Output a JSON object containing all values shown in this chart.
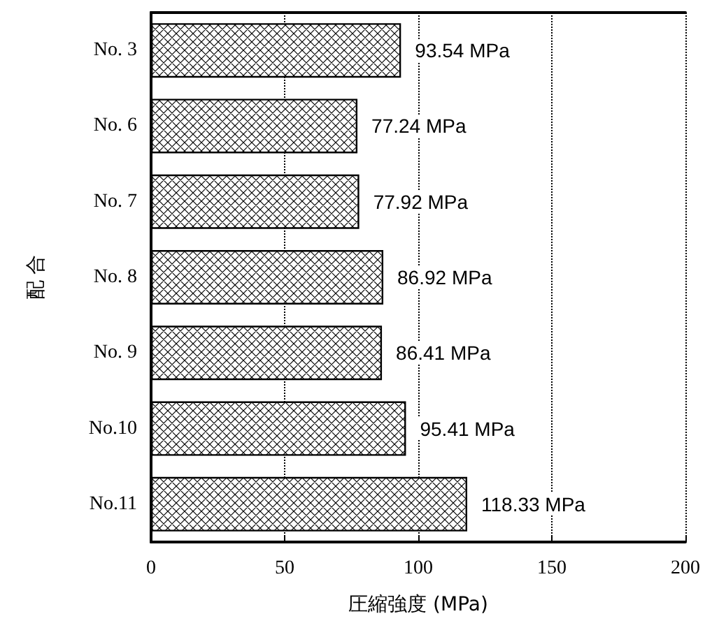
{
  "chart_data": {
    "type": "bar",
    "orientation": "horizontal",
    "categories": [
      "No. 3",
      "No. 6",
      "No. 7",
      "No. 8",
      "No. 9",
      "No.10",
      "No.11"
    ],
    "values": [
      93.54,
      77.24,
      77.92,
      86.92,
      86.41,
      95.41,
      118.33
    ],
    "value_labels": [
      "93.54 MPa",
      "77.24 MPa",
      "77.92 MPa",
      "86.92 MPa",
      "86.41 MPa",
      "95.41 MPa",
      "118.33 MPa"
    ],
    "color": "#000000",
    "xlim": [
      0,
      200
    ],
    "xticks": [
      0,
      50,
      100,
      150,
      200
    ],
    "xlabel": "圧縮強度 (MPa)",
    "ylabel": "配 合",
    "grid": "x"
  }
}
